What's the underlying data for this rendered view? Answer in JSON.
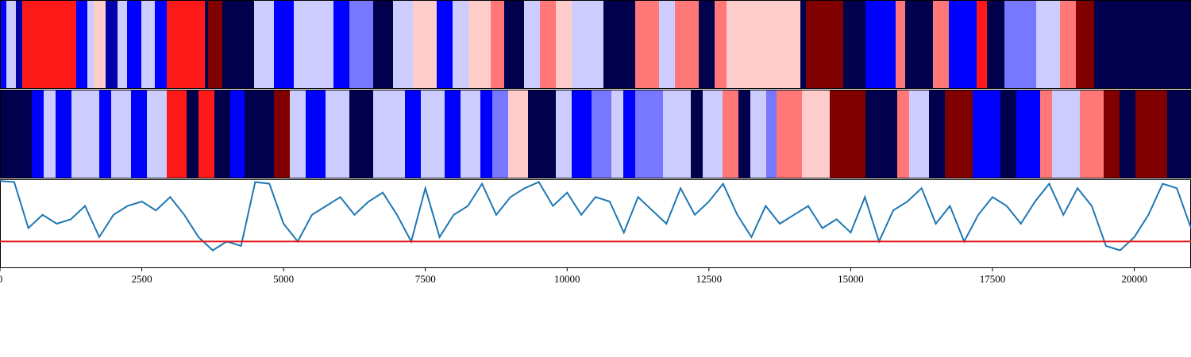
{
  "chart_data": [
    {
      "type": "strip",
      "xlim": [
        0,
        21000
      ],
      "colors": [
        "#00004c",
        "#0000a8",
        "#0000ff",
        "#7777ff",
        "#ccccff",
        "#ffcccc",
        "#ff7777",
        "#ff1a1a",
        "#800000"
      ],
      "edges": [
        0,
        112,
        280,
        392,
        1344,
        1540,
        1652,
        1862,
        2072,
        2240,
        2492,
        2730,
        2940,
        3612,
        3668,
        3920,
        4480,
        4830,
        5180,
        5880,
        6160,
        6580,
        6930,
        7280,
        7700,
        7980,
        8260,
        8652,
        8890,
        9240,
        9520,
        9800,
        10080,
        10640,
        11200,
        11620,
        11900,
        12320,
        12600,
        12810,
        14112,
        14210,
        14868,
        15260,
        15792,
        15960,
        16450,
        16730,
        17220,
        17402,
        17710,
        18270,
        18690,
        18970,
        19292,
        21000
      ],
      "values": [
        2,
        4,
        1,
        7,
        2,
        4,
        5,
        1,
        4,
        2,
        4,
        2,
        7,
        0,
        8,
        0,
        4,
        2,
        4,
        2,
        3,
        0,
        4,
        5,
        2,
        4,
        5,
        6,
        0,
        4,
        6,
        5,
        4,
        0,
        6,
        4,
        6,
        0,
        6,
        5,
        0,
        8,
        0,
        2,
        6,
        0,
        6,
        2,
        7,
        0,
        3,
        4,
        6,
        8,
        0
      ]
    },
    {
      "type": "strip",
      "xlim": [
        0,
        21000
      ],
      "colors": [
        "#00004c",
        "#0000a8",
        "#0000ff",
        "#7777ff",
        "#ccccff",
        "#ffcccc",
        "#ff7777",
        "#ff1a1a",
        "#800000"
      ],
      "edges": [
        0,
        560,
        770,
        980,
        1260,
        1750,
        1960,
        2310,
        2590,
        2940,
        3290,
        3500,
        3780,
        4060,
        4312,
        4830,
        5110,
        5390,
        5740,
        6160,
        6580,
        7140,
        7420,
        7840,
        8120,
        8470,
        8680,
        8960,
        9310,
        9800,
        10080,
        10430,
        10780,
        10990,
        11200,
        11690,
        12180,
        12390,
        12740,
        13020,
        13230,
        13510,
        13692,
        14140,
        14630,
        15260,
        15820,
        16030,
        16380,
        16660,
        17150,
        17640,
        17920,
        18340,
        18550,
        19040,
        19460,
        19740,
        20020,
        20580,
        21000
      ],
      "values": [
        0,
        2,
        4,
        2,
        4,
        2,
        4,
        2,
        4,
        7,
        0,
        7,
        0,
        2,
        0,
        8,
        4,
        2,
        4,
        0,
        4,
        2,
        4,
        2,
        4,
        2,
        3,
        5,
        0,
        4,
        2,
        3,
        4,
        2,
        3,
        4,
        0,
        4,
        6,
        0,
        4,
        3,
        6,
        5,
        8,
        0,
        6,
        4,
        0,
        8,
        2,
        0,
        2,
        6,
        4,
        6,
        8,
        0,
        8,
        0
      ]
    },
    {
      "type": "line",
      "color": "#1f77b4",
      "xlim": [
        0,
        21000
      ],
      "ylim": [
        0,
        1
      ],
      "xticks": [
        0,
        2500,
        5000,
        7500,
        10000,
        12500,
        15000,
        17500,
        20000
      ],
      "hline": {
        "value": 0.3,
        "color": "#e41a1c"
      },
      "x": [
        0,
        250,
        500,
        750,
        1000,
        1250,
        1500,
        1750,
        2000,
        2250,
        2500,
        2750,
        3000,
        3250,
        3500,
        3750,
        4000,
        4250,
        4500,
        4750,
        5000,
        5250,
        5500,
        5750,
        6000,
        6250,
        6500,
        6750,
        7000,
        7250,
        7500,
        7750,
        8000,
        8250,
        8500,
        8750,
        9000,
        9250,
        9500,
        9750,
        10000,
        10250,
        10500,
        10750,
        11000,
        11250,
        11500,
        11750,
        12000,
        12250,
        12500,
        12750,
        13000,
        13250,
        13500,
        13750,
        14000,
        14250,
        14500,
        14750,
        15000,
        15250,
        15500,
        15750,
        16000,
        16250,
        16500,
        16750,
        17000,
        17250,
        17500,
        17750,
        18000,
        18250,
        18500,
        18750,
        19000,
        19250,
        19500,
        19750,
        20000,
        20250,
        20500,
        20750,
        21000
      ],
      "values": [
        0.98,
        0.97,
        0.45,
        0.6,
        0.5,
        0.55,
        0.7,
        0.35,
        0.6,
        0.7,
        0.75,
        0.65,
        0.8,
        0.6,
        0.35,
        0.2,
        0.3,
        0.25,
        0.97,
        0.95,
        0.5,
        0.3,
        0.6,
        0.7,
        0.8,
        0.6,
        0.75,
        0.85,
        0.6,
        0.3,
        0.9,
        0.35,
        0.6,
        0.7,
        0.95,
        0.6,
        0.8,
        0.9,
        0.97,
        0.7,
        0.85,
        0.6,
        0.8,
        0.75,
        0.4,
        0.8,
        0.65,
        0.5,
        0.9,
        0.6,
        0.75,
        0.95,
        0.6,
        0.35,
        0.7,
        0.5,
        0.6,
        0.7,
        0.45,
        0.55,
        0.4,
        0.8,
        0.3,
        0.65,
        0.75,
        0.9,
        0.5,
        0.7,
        0.3,
        0.6,
        0.8,
        0.7,
        0.5,
        0.75,
        0.95,
        0.6,
        0.9,
        0.7,
        0.25,
        0.2,
        0.35,
        0.6,
        0.95,
        0.9,
        0.45
      ]
    }
  ]
}
